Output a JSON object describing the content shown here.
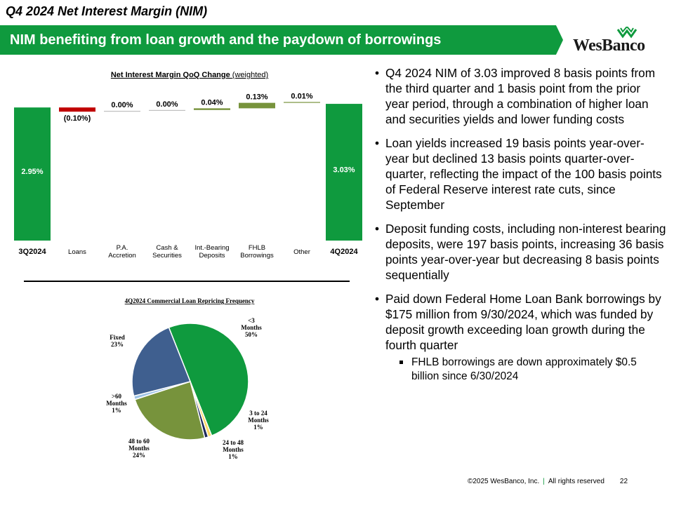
{
  "header": {
    "title": "Q4 2024 Net Interest Margin (NIM)",
    "banner": "NIM benefiting from loan growth and the paydown of borrowings",
    "logo_text": "WesBanco"
  },
  "colors": {
    "green": "#0f9a3e",
    "olive": "#77933c",
    "red": "#c00000",
    "navy": "#1f2a5c",
    "steel": "#3f5f8f",
    "light_blue": "#9dc3e6",
    "yellow": "#ffd966"
  },
  "chart_data": [
    {
      "type": "bar",
      "subtype": "waterfall",
      "title": "Net Interest Margin QoQ Change",
      "title_suffix": "(weighted)",
      "categories": [
        "3Q2024",
        "Loans",
        "P.A. Accretion",
        "Cash & Securities",
        "Int.-Bearing Deposits",
        "FHLB Borrowings",
        "Other",
        "4Q2024"
      ],
      "category_lines": [
        [
          "3Q2024"
        ],
        [
          "Loans"
        ],
        [
          "P.A.",
          "Accretion"
        ],
        [
          "Cash &",
          "Securities"
        ],
        [
          "Int.-Bearing",
          "Deposits"
        ],
        [
          "FHLB",
          "Borrowings"
        ],
        [
          "Other"
        ],
        [
          "4Q2024"
        ]
      ],
      "values": [
        2.95,
        -0.1,
        0.0,
        0.0,
        0.04,
        0.13,
        0.01,
        3.03
      ],
      "labels": [
        "2.95%",
        "(0.10%)",
        "0.00%",
        "0.00%",
        "0.04%",
        "0.13%",
        "0.01%",
        "3.03%"
      ],
      "bar_kind": [
        "total",
        "delta",
        "delta",
        "delta",
        "delta",
        "delta",
        "delta",
        "total"
      ],
      "ylim": [
        0,
        3.2
      ]
    },
    {
      "type": "pie",
      "title": "4Q2024 Commercial Loan Repricing Frequency",
      "slices": [
        {
          "label": "<3 Months",
          "value": 50,
          "text": "50%",
          "color": "#0f9a3e"
        },
        {
          "label": "3 to 24 Months",
          "value": 1,
          "text": "1%",
          "color": "#ffd966"
        },
        {
          "label": "24 to 48 Months",
          "value": 1,
          "text": "1%",
          "color": "#1f2a5c"
        },
        {
          "label": "48 to 60 Months",
          "value": 24,
          "text": "24%",
          "color": "#77933c"
        },
        {
          "label": ">60 Months",
          "value": 1,
          "text": "1%",
          "color": "#9dc3e6"
        },
        {
          "label": "Fixed",
          "value": 23,
          "text": "23%",
          "color": "#3f5f8f"
        }
      ]
    }
  ],
  "bullets": [
    {
      "text": "Q4 2024 NIM of 3.03 improved 8 basis points from the third quarter and 1 basis point from the prior year period, through a combination of higher loan and securities yields and lower funding costs"
    },
    {
      "text": "Loan yields increased 19 basis points year-over-year but declined 13 basis points quarter-over-quarter, reflecting the impact of the 100 basis points of Federal Reserve interest rate cuts, since September"
    },
    {
      "text": "Deposit funding costs, including non-interest bearing deposits, were 197 basis points, increasing 36 basis points year-over-year but decreasing 8 basis points sequentially"
    },
    {
      "text": "Paid down Federal Home Loan Bank borrowings by $175 million from 9/30/2024, which was funded by deposit growth exceeding loan growth during the fourth quarter",
      "sub": "FHLB borrowings are down approximately $0.5 billion since 6/30/2024"
    }
  ],
  "footer": {
    "copyright": "©2025 WesBanco, Inc.",
    "separator": "|",
    "rights": "All rights reserved",
    "page": "22"
  }
}
